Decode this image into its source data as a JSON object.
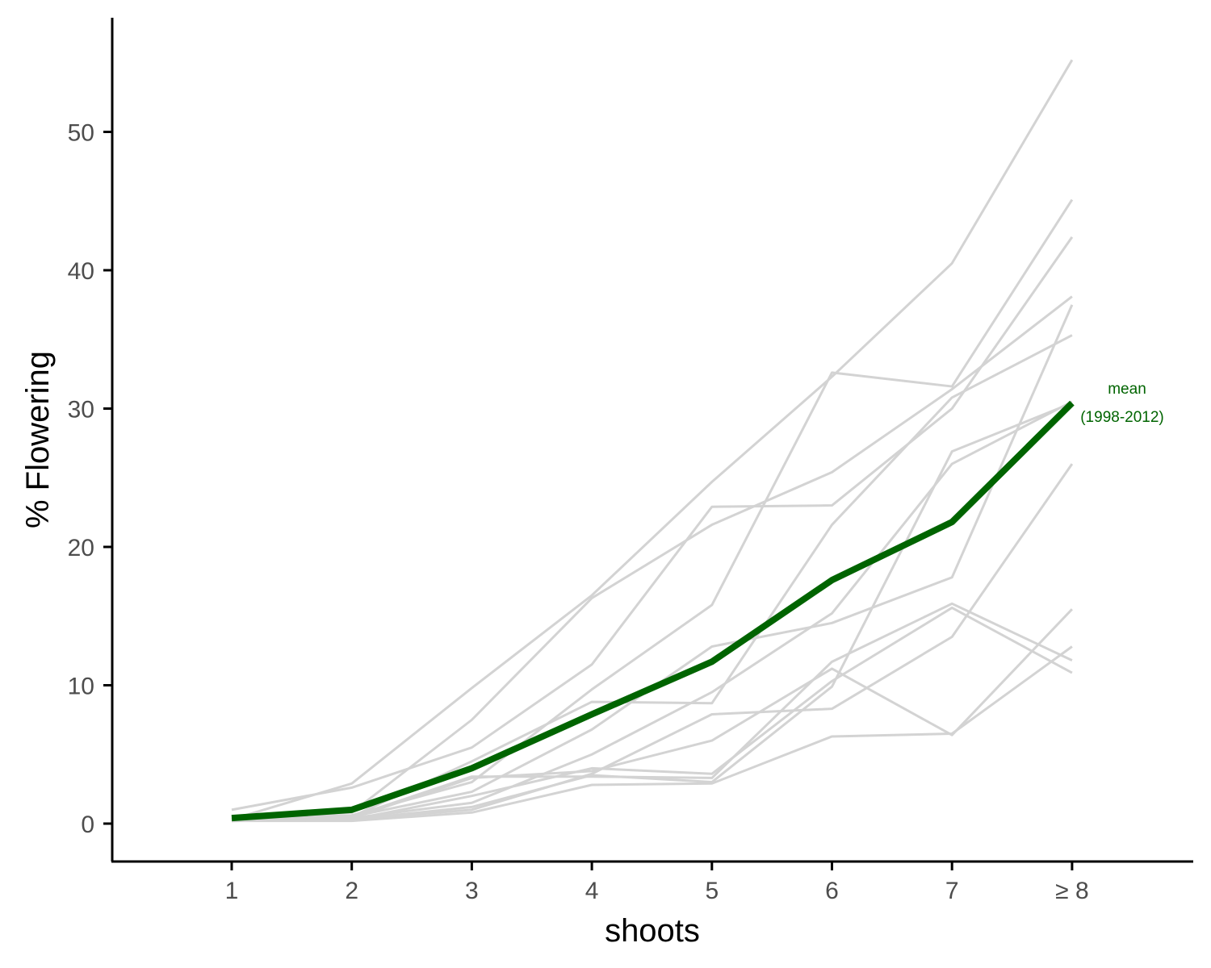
{
  "chart_data": {
    "type": "line",
    "xlabel": "shoots",
    "ylabel": "% Flowering",
    "categories": [
      "1",
      "2",
      "3",
      "4",
      "5",
      "6",
      "7",
      "≥ 8"
    ],
    "ylim": [
      -2.5,
      58
    ],
    "yticks": [
      0,
      10,
      20,
      30,
      40,
      50
    ],
    "grid": false,
    "legend": "none",
    "colors": {
      "years": "#d3d3d3",
      "mean": "#006400",
      "axis": "#000000",
      "tick_text": "#4d4d4d"
    },
    "annotation": {
      "line1": "mean",
      "line2": "(1998-2012)"
    },
    "mean_series": {
      "values": [
        0.4,
        1.0,
        4.0,
        7.9,
        11.7,
        17.6,
        21.8,
        30.4
      ]
    },
    "series": [
      {
        "values": [
          1.0,
          2.6,
          5.5,
          11.5,
          22.9,
          23.0,
          30.0,
          42.4
        ]
      },
      {
        "values": [
          0.3,
          2.9,
          9.8,
          16.5,
          24.7,
          32.3,
          40.5,
          55.2
        ]
      },
      {
        "values": [
          0.3,
          0.8,
          7.5,
          16.3,
          21.6,
          25.4,
          31.4,
          38.1
        ]
      },
      {
        "values": [
          0.3,
          0.6,
          3.0,
          9.7,
          15.8,
          32.6,
          31.6,
          45.1
        ]
      },
      {
        "values": [
          0.3,
          0.5,
          4.5,
          8.8,
          8.7,
          21.6,
          30.8,
          35.3
        ]
      },
      {
        "values": [
          0.3,
          0.5,
          2.3,
          6.8,
          12.8,
          14.5,
          17.8,
          37.5
        ]
      },
      {
        "values": [
          0.3,
          0.4,
          1.5,
          5.0,
          9.5,
          15.2,
          26.0,
          30.5
        ]
      },
      {
        "values": [
          0.2,
          0.4,
          3.3,
          3.8,
          6.0,
          11.2,
          6.4,
          15.5
        ]
      },
      {
        "values": [
          0.2,
          0.3,
          1.0,
          3.6,
          7.9,
          8.3,
          13.5,
          26.0
        ]
      },
      {
        "values": [
          0.2,
          0.5,
          3.4,
          3.4,
          3.3,
          11.7,
          15.9,
          11.8
        ]
      },
      {
        "values": [
          0.2,
          0.2,
          0.8,
          2.8,
          2.9,
          6.3,
          6.5,
          12.8
        ]
      },
      {
        "values": [
          0.2,
          0.3,
          2.0,
          4.0,
          3.6,
          10.3,
          15.6,
          10.9
        ]
      },
      {
        "values": [
          0.2,
          0.3,
          1.2,
          3.5,
          3.0,
          9.9,
          26.9,
          30.4
        ]
      }
    ]
  }
}
